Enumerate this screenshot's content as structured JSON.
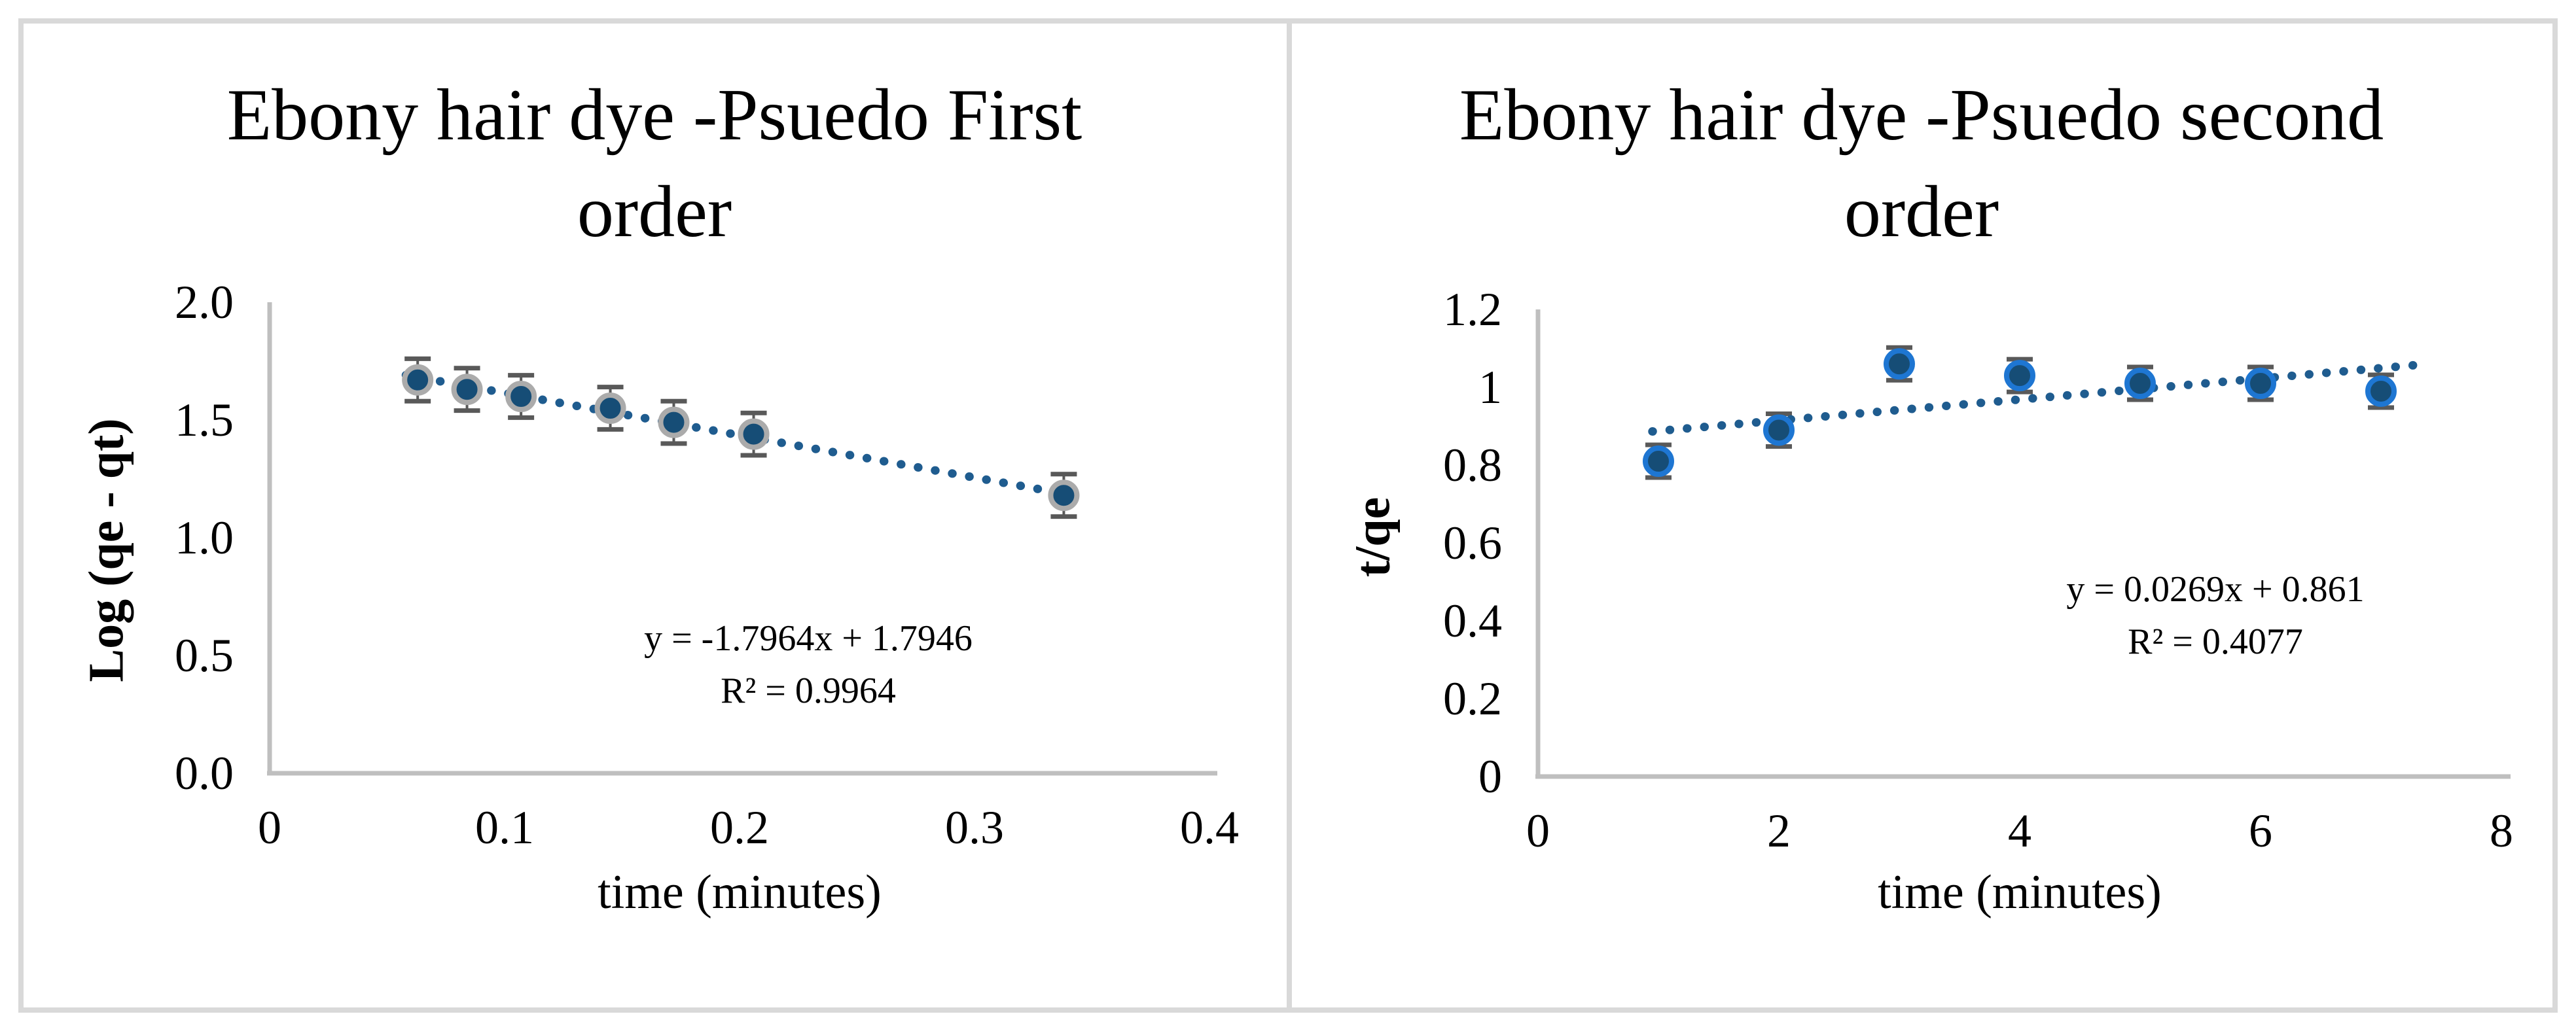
{
  "figure": {
    "background": "#FFFFFF",
    "frame_color": "#D9D9D9",
    "axis_line_color": "#BFBFBF",
    "error_bar_color": "#595959",
    "text_color": "#000000"
  },
  "chart_data": [
    {
      "type": "scatter",
      "title": "Ebony hair dye -Psuedo First order",
      "title_line1": "Ebony hair dye -Psuedo First",
      "title_line2": "order",
      "xlabel": "time (minutes)",
      "ylabel": "Log (qe - qt)",
      "xlim": [
        0,
        0.4
      ],
      "ylim": [
        0,
        2.0
      ],
      "grid": false,
      "legend": false,
      "x_ticks": [
        {
          "v": 0,
          "label": "0"
        },
        {
          "v": 0.1,
          "label": "0.1"
        },
        {
          "v": 0.2,
          "label": "0.2"
        },
        {
          "v": 0.3,
          "label": "0.3"
        },
        {
          "v": 0.4,
          "label": "0.4"
        }
      ],
      "y_ticks": [
        {
          "v": 2,
          "label": "2.0"
        },
        {
          "v": 1.5,
          "label": "1.5"
        },
        {
          "v": 1,
          "label": "1.0"
        },
        {
          "v": 0.5,
          "label": "0.5"
        },
        {
          "v": 0,
          "label": "0.0"
        }
      ],
      "points": {
        "x": [
          0.063,
          0.084,
          0.107,
          0.145,
          0.172,
          0.206,
          0.338
        ],
        "y": [
          1.67,
          1.63,
          1.6,
          1.55,
          1.49,
          1.44,
          1.18
        ]
      },
      "y_error": 0.09,
      "trendline": {
        "slope": -1.7964,
        "intercept": 1.7946,
        "x_start": 0.058,
        "x_end": 0.347,
        "style": "dotted"
      },
      "equation": "y = -1.7964x + 1.7946",
      "r_squared": "R² = 0.9964",
      "marker_fill": "#164D76",
      "marker_ring": "#ABABAB",
      "trend_color": "#1F5C8F"
    },
    {
      "type": "scatter",
      "title": "Ebony hair dye -Psuedo second order",
      "title_line1": "Ebony hair dye -Psuedo second",
      "title_line2": "order",
      "xlabel": "time (minutes)",
      "ylabel": "t/qe",
      "xlim": [
        0,
        8
      ],
      "ylim": [
        0,
        1.2
      ],
      "grid": false,
      "legend": false,
      "x_ticks": [
        {
          "v": 0,
          "label": "0"
        },
        {
          "v": 2,
          "label": "2"
        },
        {
          "v": 4,
          "label": "4"
        },
        {
          "v": 6,
          "label": "6"
        },
        {
          "v": 8,
          "label": "8"
        }
      ],
      "y_ticks": [
        {
          "v": 1.2,
          "label": "1.2"
        },
        {
          "v": 1,
          "label": "1"
        },
        {
          "v": 0.8,
          "label": "0.8"
        },
        {
          "v": 0.6,
          "label": "0.6"
        },
        {
          "v": 0.4,
          "label": "0.4"
        },
        {
          "v": 0.2,
          "label": "0.2"
        },
        {
          "v": 0,
          "label": "0"
        }
      ],
      "points": {
        "x": [
          1,
          2,
          3,
          4,
          5,
          6,
          7
        ],
        "y": [
          0.81,
          0.89,
          1.06,
          1.03,
          1.01,
          1.01,
          0.99
        ]
      },
      "y_error": 0.042,
      "trendline": {
        "slope": 0.0269,
        "intercept": 0.861,
        "x_start": 0.95,
        "x_end": 7.3,
        "style": "dotted"
      },
      "equation": "y = 0.0269x + 0.861",
      "r_squared": "R² = 0.4077",
      "marker_fill": "#164D76",
      "marker_ring": "#1E76D2",
      "trend_color": "#1F5C8F"
    }
  ]
}
